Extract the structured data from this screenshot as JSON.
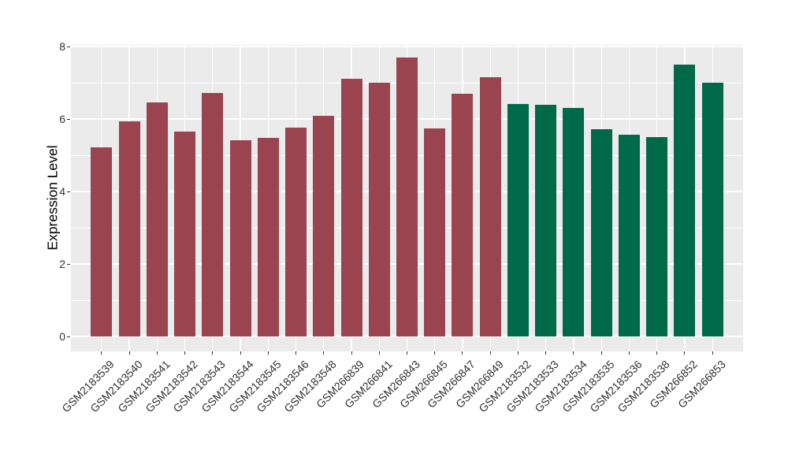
{
  "figure": {
    "background": "#FFFFFF",
    "panel_background": "#EBEBEB",
    "grid_color": "#FFFFFF",
    "tick_color": "#333333",
    "axis_text_color": "#303030"
  },
  "chart_data": {
    "type": "bar",
    "title": "",
    "xlabel": "",
    "ylabel": "Expression Level",
    "ylim": [
      0,
      8
    ],
    "yticks": [
      0,
      2,
      4,
      6,
      8
    ],
    "yticks_minor": [
      1,
      3,
      5,
      7
    ],
    "grid": "on",
    "legend": "none",
    "x_label_rotation_deg": 45,
    "categories": [
      "GSM2183539",
      "GSM2183540",
      "GSM2183541",
      "GSM2183542",
      "GSM2183543",
      "GSM2183544",
      "GSM2183545",
      "GSM2183546",
      "GSM2183548",
      "GSM266839",
      "GSM266841",
      "GSM266843",
      "GSM266845",
      "GSM266847",
      "GSM266849",
      "GSM2183532",
      "GSM2183533",
      "GSM2183534",
      "GSM2183535",
      "GSM2183536",
      "GSM2183538",
      "GSM266852",
      "GSM266853"
    ],
    "values": [
      5.22,
      5.93,
      6.46,
      5.65,
      6.72,
      5.41,
      5.48,
      5.76,
      6.08,
      7.1,
      7.0,
      7.7,
      5.74,
      6.7,
      7.15,
      6.42,
      6.39,
      6.3,
      5.72,
      5.57,
      5.49,
      7.5,
      6.99
    ],
    "bar_colors": [
      "#9A4450",
      "#9A4450",
      "#9A4450",
      "#9A4450",
      "#9A4450",
      "#9A4450",
      "#9A4450",
      "#9A4450",
      "#9A4450",
      "#9A4450",
      "#9A4450",
      "#9A4450",
      "#9A4450",
      "#9A4450",
      "#9A4450",
      "#006948",
      "#006948",
      "#006948",
      "#006948",
      "#006948",
      "#006948",
      "#006948",
      "#006948"
    ],
    "group_colors": {
      "group1": "#9A4450",
      "group2": "#006948"
    }
  }
}
